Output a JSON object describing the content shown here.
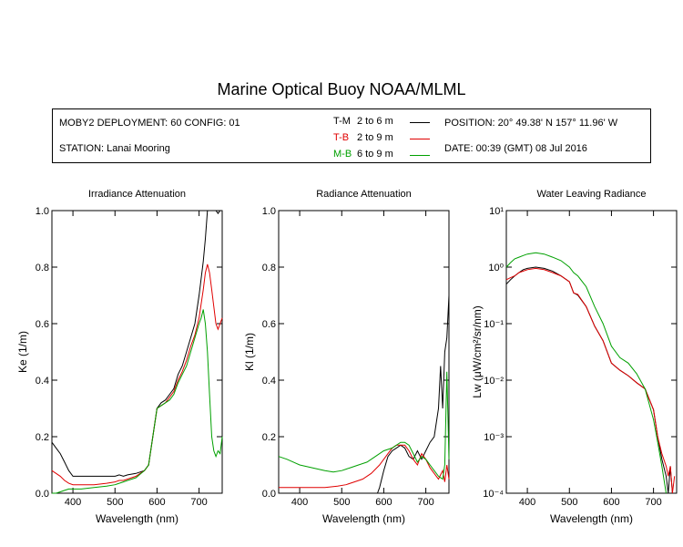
{
  "title": "Marine Optical Buoy NOAA/MLML",
  "info": {
    "deployment": "MOBY2 DEPLOYMENT: 60 CONFIG: 01",
    "station": "STATION: Lanai Mooring",
    "position": "POSITION: 20° 49.38' N   157° 11.96' W",
    "date": "DATE: 00:39 (GMT) 08 Jul 2016",
    "legend": [
      {
        "code": "T-M",
        "range": "2 to 6  m",
        "color": "#000000"
      },
      {
        "code": "T-B",
        "range": "2 to 9  m",
        "color": "#e00000"
      },
      {
        "code": "M-B",
        "range": "6 to 9  m",
        "color": "#00a000"
      }
    ]
  },
  "chart_data": [
    {
      "type": "line",
      "title": "Irradiance Attenuation",
      "xlabel": "Wavelength (nm)",
      "ylabel": "Ke  (1/m)",
      "xlim": [
        350,
        755
      ],
      "ylim": [
        0,
        1.0
      ],
      "xticks": [
        400,
        500,
        600,
        700
      ],
      "yticks": [
        0.0,
        0.2,
        0.4,
        0.6,
        0.8,
        1.0
      ],
      "ytick_labels": [
        "0.0",
        "0.2",
        "0.4",
        "0.6",
        "0.8",
        "1.0"
      ],
      "series": [
        {
          "name": "T-M",
          "color": "#000000",
          "x": [
            350,
            360,
            370,
            380,
            390,
            400,
            420,
            450,
            480,
            500,
            510,
            520,
            530,
            550,
            570,
            580,
            590,
            600,
            610,
            620,
            630,
            640,
            650,
            660,
            670,
            680,
            690,
            700,
            710,
            715,
            720,
            725,
            730,
            735,
            740,
            745,
            750,
            755
          ],
          "y": [
            0.18,
            0.16,
            0.14,
            0.11,
            0.08,
            0.06,
            0.06,
            0.06,
            0.06,
            0.06,
            0.065,
            0.06,
            0.065,
            0.07,
            0.08,
            0.1,
            0.2,
            0.3,
            0.32,
            0.33,
            0.35,
            0.37,
            0.42,
            0.45,
            0.5,
            0.55,
            0.6,
            0.7,
            0.82,
            0.9,
            1.0,
            1.0,
            1.0,
            1.0,
            1.0,
            0.99,
            1.0,
            1.0
          ]
        },
        {
          "name": "T-B",
          "color": "#e00000",
          "x": [
            350,
            360,
            370,
            380,
            390,
            400,
            420,
            450,
            480,
            500,
            510,
            520,
            530,
            550,
            570,
            580,
            590,
            600,
            610,
            620,
            630,
            640,
            650,
            660,
            670,
            680,
            690,
            700,
            710,
            715,
            720,
            725,
            730,
            735,
            740,
            745,
            750,
            755
          ],
          "y": [
            0.08,
            0.07,
            0.06,
            0.045,
            0.035,
            0.03,
            0.03,
            0.03,
            0.035,
            0.04,
            0.045,
            0.045,
            0.05,
            0.06,
            0.08,
            0.1,
            0.2,
            0.3,
            0.31,
            0.32,
            0.34,
            0.36,
            0.4,
            0.43,
            0.47,
            0.52,
            0.56,
            0.62,
            0.72,
            0.78,
            0.81,
            0.78,
            0.72,
            0.66,
            0.6,
            0.58,
            0.6,
            0.62
          ]
        },
        {
          "name": "M-B",
          "color": "#00a000",
          "x": [
            350,
            360,
            370,
            380,
            390,
            400,
            420,
            450,
            480,
            500,
            510,
            520,
            530,
            550,
            570,
            580,
            590,
            600,
            610,
            620,
            630,
            640,
            650,
            660,
            670,
            680,
            690,
            700,
            705,
            710,
            715,
            720,
            725,
            730,
            735,
            740,
            745,
            750,
            755
          ],
          "y": [
            0.0,
            0.0,
            0.005,
            0.01,
            0.015,
            0.015,
            0.015,
            0.02,
            0.025,
            0.03,
            0.035,
            0.04,
            0.045,
            0.055,
            0.08,
            0.1,
            0.2,
            0.3,
            0.31,
            0.32,
            0.33,
            0.35,
            0.39,
            0.42,
            0.45,
            0.5,
            0.55,
            0.6,
            0.62,
            0.65,
            0.6,
            0.5,
            0.35,
            0.2,
            0.15,
            0.13,
            0.15,
            0.14,
            0.2
          ]
        }
      ]
    },
    {
      "type": "line",
      "title": "Radiance Attenuation",
      "xlabel": "Wavelength (nm)",
      "ylabel": "Kl  (1/m)",
      "xlim": [
        350,
        755
      ],
      "ylim": [
        0,
        1.0
      ],
      "xticks": [
        400,
        500,
        600,
        700
      ],
      "yticks": [
        0.0,
        0.2,
        0.4,
        0.6,
        0.8,
        1.0
      ],
      "ytick_labels": [
        "0.0",
        "0.2",
        "0.4",
        "0.6",
        "0.8",
        "1.0"
      ],
      "series": [
        {
          "name": "T-M",
          "color": "#000000",
          "x": [
            585,
            590,
            600,
            610,
            620,
            630,
            640,
            650,
            660,
            670,
            680,
            690,
            700,
            710,
            720,
            730,
            735,
            740,
            745,
            750,
            755
          ],
          "y": [
            0.0,
            0.02,
            0.08,
            0.13,
            0.15,
            0.16,
            0.17,
            0.16,
            0.13,
            0.12,
            0.15,
            0.12,
            0.15,
            0.18,
            0.2,
            0.3,
            0.45,
            0.3,
            0.5,
            0.55,
            0.7
          ]
        },
        {
          "name": "T-B",
          "color": "#e00000",
          "x": [
            350,
            370,
            400,
            430,
            460,
            490,
            510,
            530,
            550,
            570,
            590,
            600,
            610,
            620,
            630,
            640,
            650,
            660,
            670,
            680,
            690,
            700,
            710,
            720,
            730,
            740,
            745,
            750,
            755
          ],
          "y": [
            0.02,
            0.02,
            0.02,
            0.02,
            0.02,
            0.025,
            0.03,
            0.04,
            0.05,
            0.07,
            0.1,
            0.12,
            0.14,
            0.16,
            0.17,
            0.17,
            0.17,
            0.15,
            0.12,
            0.1,
            0.14,
            0.12,
            0.09,
            0.07,
            0.05,
            0.08,
            0.04,
            0.1,
            0.05
          ]
        },
        {
          "name": "M-B",
          "color": "#00a000",
          "x": [
            350,
            370,
            400,
            430,
            460,
            480,
            500,
            520,
            540,
            560,
            580,
            600,
            620,
            640,
            650,
            660,
            670,
            680,
            690,
            700,
            710,
            720,
            730,
            740,
            745,
            750,
            755
          ],
          "y": [
            0.13,
            0.12,
            0.1,
            0.09,
            0.08,
            0.075,
            0.08,
            0.09,
            0.1,
            0.11,
            0.13,
            0.15,
            0.16,
            0.18,
            0.18,
            0.17,
            0.14,
            0.11,
            0.13,
            0.12,
            0.1,
            0.08,
            0.06,
            0.05,
            0.1,
            0.43,
            0.12
          ]
        }
      ]
    },
    {
      "type": "line",
      "title": "Water Leaving Radiance",
      "xlabel": "Wavelength (nm)",
      "ylabel": "Lw  (μW/cm²/sr/nm)",
      "xlim": [
        350,
        755
      ],
      "ylim": [
        0.0001,
        10
      ],
      "yscale": "log",
      "xticks": [
        400,
        500,
        600,
        700
      ],
      "yticks": [
        0.0001,
        0.001,
        0.01,
        0.1,
        1,
        10
      ],
      "ytick_labels": [
        "10⁻⁴",
        "10⁻³",
        "10⁻²",
        "10⁻¹",
        "10⁰",
        "10¹"
      ],
      "series": [
        {
          "name": "T-M",
          "color": "#000000",
          "x": [
            350,
            360,
            370,
            380,
            390,
            400,
            420,
            440,
            460,
            480,
            500,
            510,
            520,
            540,
            560,
            580,
            600,
            620,
            640,
            660,
            680,
            700,
            710,
            720,
            730,
            735,
            740,
            745,
            750
          ],
          "y": [
            0.5,
            0.6,
            0.7,
            0.8,
            0.9,
            0.95,
            1.0,
            0.95,
            0.85,
            0.7,
            0.55,
            0.35,
            0.32,
            0.2,
            0.09,
            0.05,
            0.02,
            0.015,
            0.012,
            0.009,
            0.007,
            0.003,
            0.001,
            0.0004,
            0.0002,
            0.0001,
            0.0003,
            0.0001,
            0.0001
          ]
        },
        {
          "name": "T-B",
          "color": "#e00000",
          "x": [
            350,
            360,
            370,
            380,
            390,
            400,
            420,
            440,
            460,
            480,
            500,
            510,
            520,
            540,
            560,
            580,
            600,
            620,
            640,
            660,
            680,
            700,
            710,
            720,
            730,
            735,
            740,
            745,
            750
          ],
          "y": [
            0.6,
            0.65,
            0.7,
            0.8,
            0.85,
            0.9,
            0.95,
            0.9,
            0.8,
            0.7,
            0.55,
            0.35,
            0.33,
            0.2,
            0.09,
            0.05,
            0.02,
            0.015,
            0.012,
            0.009,
            0.007,
            0.003,
            0.001,
            0.0005,
            0.0003,
            0.0002,
            0.0003,
            0.0001,
            0.0002
          ]
        },
        {
          "name": "M-B",
          "color": "#00a000",
          "x": [
            350,
            360,
            370,
            380,
            390,
            400,
            420,
            440,
            460,
            480,
            500,
            510,
            520,
            540,
            560,
            580,
            600,
            620,
            640,
            660,
            680,
            700,
            710,
            720,
            730
          ],
          "y": [
            1.0,
            1.2,
            1.4,
            1.5,
            1.6,
            1.7,
            1.8,
            1.7,
            1.5,
            1.3,
            1.0,
            0.8,
            0.7,
            0.45,
            0.2,
            0.1,
            0.04,
            0.025,
            0.02,
            0.013,
            0.007,
            0.002,
            0.0008,
            0.0003,
            0.0001
          ]
        }
      ]
    }
  ]
}
